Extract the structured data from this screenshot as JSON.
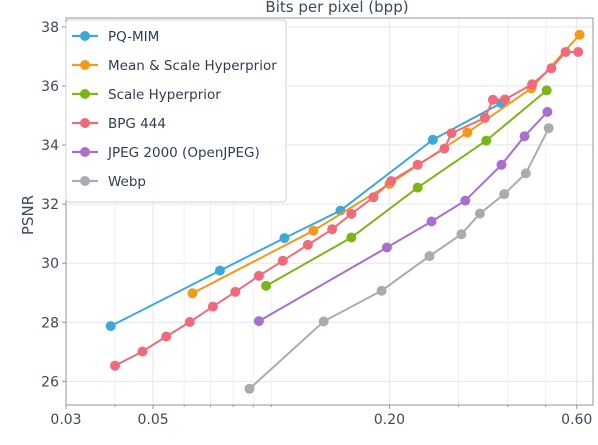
{
  "chart_data": {
    "type": "line",
    "title": "",
    "xlabel": "Bits per pixel (bpp)",
    "ylabel": "PSNR",
    "xscale": "log",
    "xlim": [
      0.03,
      0.66
    ],
    "ylim": [
      25.2,
      38.3
    ],
    "xticks": [
      {
        "value": 0.03,
        "label": "0.03"
      },
      {
        "value": 0.05,
        "label": "0.05"
      },
      {
        "value": 0.2,
        "label": "0.20"
      },
      {
        "value": 0.6,
        "label": "0.60"
      }
    ],
    "yticks": [
      26,
      28,
      30,
      32,
      34,
      36,
      38
    ],
    "x_minor_ticks": [
      0.04,
      0.06,
      0.07,
      0.08,
      0.09,
      0.1,
      0.3,
      0.4,
      0.5
    ],
    "grid": true,
    "legend_position": "top-left",
    "series": [
      {
        "name": "PQ-MIM",
        "color": "#3ea8d8",
        "x": [
          0.039,
          0.074,
          0.108,
          0.15,
          0.258,
          0.385
        ],
        "y": [
          27.87,
          29.75,
          30.85,
          31.78,
          34.18,
          35.42
        ]
      },
      {
        "name": "Mean & Scale Hyperprior",
        "color": "#f39a1c",
        "x": [
          0.063,
          0.128,
          0.2,
          0.316,
          0.46,
          0.61
        ],
        "y": [
          28.98,
          31.1,
          32.68,
          34.42,
          35.92,
          37.73
        ]
      },
      {
        "name": "Scale Hyperprior",
        "color": "#7cb518",
        "x": [
          0.097,
          0.16,
          0.236,
          0.353,
          0.503
        ],
        "y": [
          29.23,
          30.87,
          32.56,
          34.15,
          35.85
        ]
      },
      {
        "name": "BPG 444",
        "color": "#ef6b7b",
        "x": [
          0.04,
          0.047,
          0.054,
          0.062,
          0.071,
          0.081,
          0.093,
          0.107,
          0.124,
          0.143,
          0.16,
          0.182,
          0.202,
          0.236,
          0.276,
          0.288,
          0.35,
          0.367,
          0.394,
          0.462,
          0.517,
          0.562,
          0.605
        ],
        "y": [
          26.53,
          27.01,
          27.52,
          28.01,
          28.53,
          29.03,
          29.57,
          30.08,
          30.62,
          31.15,
          31.67,
          32.23,
          32.78,
          33.33,
          33.88,
          34.4,
          34.92,
          35.53,
          35.54,
          36.06,
          36.6,
          37.15,
          37.15
        ]
      },
      {
        "name": "JPEG 2000 (OpenJPEG)",
        "color": "#a86fcf",
        "x": [
          0.093,
          0.197,
          0.256,
          0.312,
          0.386,
          0.442,
          0.505
        ],
        "y": [
          28.04,
          30.53,
          31.41,
          32.12,
          33.33,
          34.3,
          35.12
        ]
      },
      {
        "name": "Webp",
        "color": "#a8acb2",
        "x": [
          0.088,
          0.136,
          0.191,
          0.253,
          0.305,
          0.34,
          0.392,
          0.445,
          0.509
        ],
        "y": [
          25.75,
          28.03,
          29.07,
          30.24,
          30.98,
          31.68,
          32.34,
          33.04,
          34.57
        ]
      }
    ]
  }
}
